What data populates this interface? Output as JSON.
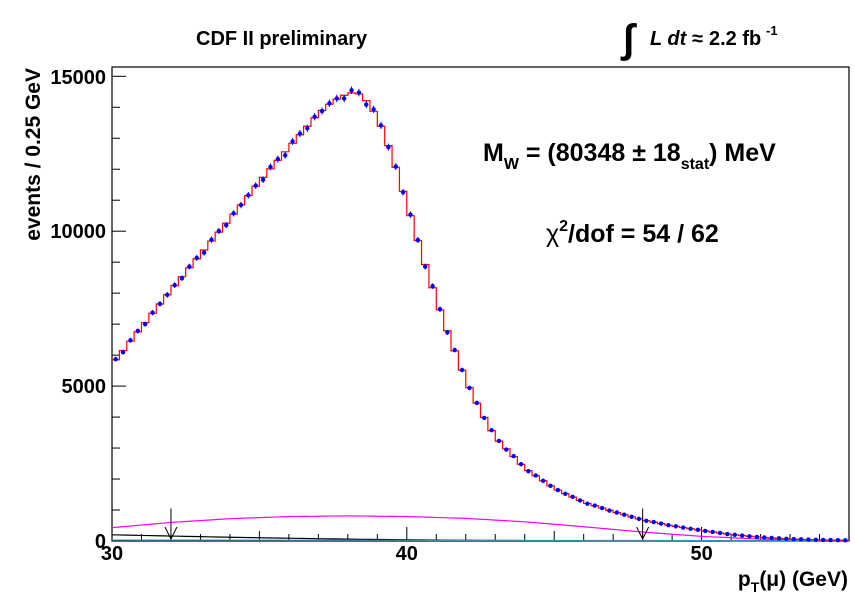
{
  "header": {
    "left_text": "CDF II preliminary",
    "lumi_symbol": "∫",
    "lumi_text": "L dt",
    "lumi_approx": "≈",
    "lumi_value": "2.2 fb",
    "lumi_exp": "-1"
  },
  "annotations": {
    "mw_main": "M",
    "mw_sub": "W",
    "mw_value": " = (80348 ± 18",
    "mw_stat": "stat",
    "mw_unit": ") MeV",
    "chi_symbol": "χ",
    "chi_exp": "2",
    "chi_text": "/dof = 54 / 62"
  },
  "chart_data": {
    "type": "line",
    "xlabel_main": "p",
    "xlabel_sub": "T",
    "xlabel_rest": "(μ) (GeV)",
    "ylabel": "events / 0.25 GeV",
    "xlim": [
      30,
      55
    ],
    "ylim": [
      0,
      15300
    ],
    "x_ticks": [
      30,
      40,
      50
    ],
    "y_ticks": [
      0,
      5000,
      10000,
      15000
    ],
    "x_tick_labels": [
      "30",
      "40",
      "50"
    ],
    "y_tick_labels": [
      "0",
      "5000",
      "10000",
      "15000"
    ],
    "bin_width": 0.25,
    "fit_window": [
      32,
      48
    ],
    "shape_knots": {
      "x": [
        30,
        31,
        32,
        33,
        34,
        35,
        36,
        37,
        37.5,
        38,
        38.25,
        38.5,
        39,
        39.5,
        40,
        40.5,
        41,
        41.5,
        42,
        42.5,
        43,
        44,
        45,
        46,
        47,
        48,
        49,
        50,
        51,
        52,
        53,
        54,
        55
      ],
      "y": [
        5700,
        6900,
        8100,
        9250,
        10400,
        11600,
        12700,
        13800,
        14200,
        14450,
        14480,
        14380,
        13700,
        12450,
        10900,
        9300,
        7800,
        6450,
        5200,
        4200,
        3350,
        2350,
        1700,
        1250,
        950,
        680,
        490,
        340,
        210,
        120,
        65,
        35,
        20
      ]
    },
    "series": [
      {
        "name": "",
        "kind": "data-points",
        "color": "#0000ff"
      },
      {
        "name": "",
        "kind": "model-histogram",
        "color": "#ff0000"
      },
      {
        "name": "",
        "kind": "background",
        "color": "#ff00ff",
        "x": [
          30,
          32,
          34,
          36,
          38,
          40,
          42,
          44,
          46,
          48,
          50,
          52,
          55
        ],
        "y": [
          430,
          600,
          720,
          790,
          810,
          790,
          730,
          620,
          460,
          290,
          150,
          60,
          20
        ]
      },
      {
        "name": "",
        "kind": "background",
        "color": "#000000",
        "x": [
          30,
          32,
          34,
          36,
          38,
          40,
          42,
          44,
          46,
          48,
          55
        ],
        "y": [
          200,
          160,
          120,
          90,
          60,
          40,
          25,
          15,
          8,
          4,
          2
        ]
      },
      {
        "name": "",
        "kind": "background",
        "color": "#3a8fbf",
        "x": [
          30,
          55
        ],
        "y": [
          30,
          10
        ]
      }
    ]
  }
}
